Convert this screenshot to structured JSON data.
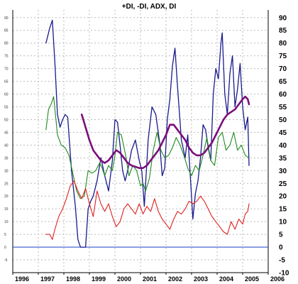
{
  "chart_data": {
    "type": "line",
    "title": "+DI, -DI, ADX, DI",
    "xlabel": "",
    "ylabel": "",
    "xlim": [
      1996.0,
      2006.0
    ],
    "ylim": [
      -10,
      93
    ],
    "grid": true,
    "x_ticks": [
      "1996",
      "1997",
      "1998",
      "1999",
      "2000",
      "2001",
      "2002",
      "2003",
      "2004",
      "2005",
      "2006"
    ],
    "y_ticks_right": [
      "-10",
      "-5",
      "0",
      "5",
      "10",
      "15",
      "20",
      "25",
      "30",
      "35",
      "40",
      "45",
      "50",
      "55",
      "60",
      "65",
      "70",
      "75",
      "80",
      "85",
      "90"
    ],
    "y_ticks_left": [
      "-5",
      "0",
      "5",
      "10",
      "15",
      "20",
      "25",
      "30",
      "35",
      "40",
      "45",
      "50",
      "55",
      "60",
      "65",
      "70",
      "75",
      "80",
      "85",
      "90"
    ],
    "colors": {
      "navy": "#1a1a8c",
      "green": "#1e8a1e",
      "red": "#e02020",
      "purple": "#7a0f7a",
      "zero": "#3355cc"
    },
    "series": [
      {
        "color": "navy",
        "width": 1.3,
        "x": [
          1997.3,
          1997.45,
          1997.55,
          1997.65,
          1997.75,
          1997.85,
          1997.95,
          1998.05,
          1998.15,
          1998.3,
          1998.45,
          1998.55,
          1998.65,
          1998.75,
          1998.85,
          1998.95,
          1999.05,
          1999.15,
          1999.3,
          1999.45,
          1999.6,
          1999.75,
          1999.9,
          2000.0,
          2000.1,
          2000.2,
          2000.3,
          2000.4,
          2000.5,
          2000.65,
          2000.8,
          2000.95,
          2001.05,
          2001.15,
          2001.3,
          2001.45,
          2001.6,
          2001.75,
          2001.85,
          2001.95,
          2002.05,
          2002.15,
          2002.25,
          2002.35,
          2002.45,
          2002.6,
          2002.75,
          2002.85,
          2002.95,
          2003.05,
          2003.15,
          2003.25,
          2003.35,
          2003.45,
          2003.55,
          2003.65,
          2003.75,
          2003.85,
          2003.95,
          2004.05,
          2004.15,
          2004.2,
          2004.3,
          2004.4,
          2004.5,
          2004.6,
          2004.7,
          2004.8,
          2004.9,
          2005.0,
          2005.1,
          2005.2,
          2005.25
        ],
        "y": [
          80,
          86,
          89,
          72,
          52,
          47,
          50,
          52,
          51,
          30,
          16,
          3,
          0,
          0,
          0,
          15,
          18,
          20,
          26,
          35,
          28,
          22,
          34,
          50,
          49,
          40,
          30,
          26,
          30,
          38,
          42,
          34,
          30,
          16,
          42,
          55,
          52,
          41,
          28,
          31,
          50,
          58,
          71,
          78,
          63,
          42,
          35,
          44,
          28,
          11,
          21,
          26,
          35,
          48,
          46,
          39,
          34,
          60,
          70,
          66,
          80,
          84,
          60,
          52,
          68,
          75,
          55,
          62,
          72,
          55,
          46,
          51,
          32
        ]
      },
      {
        "color": "green",
        "width": 1.1,
        "x": [
          1997.3,
          1997.4,
          1997.5,
          1997.6,
          1997.75,
          1997.9,
          1998.05,
          1998.2,
          1998.35,
          1998.5,
          1998.65,
          1998.8,
          1998.95,
          1999.1,
          1999.25,
          1999.4,
          1999.5,
          1999.6,
          1999.75,
          1999.9,
          2000.0,
          2000.1,
          2000.25,
          2000.4,
          2000.55,
          2000.7,
          2000.85,
          2001.0,
          2001.1,
          2001.2,
          2001.35,
          2001.5,
          2001.65,
          2001.8,
          2001.95,
          2002.1,
          2002.25,
          2002.4,
          2002.55,
          2002.7,
          2002.85,
          2003.0,
          2003.15,
          2003.3,
          2003.45,
          2003.6,
          2003.75,
          2003.9,
          2004.05,
          2004.2,
          2004.35,
          2004.5,
          2004.65,
          2004.8,
          2004.95,
          2005.1,
          2005.25
        ],
        "y": [
          46,
          54,
          56,
          59,
          44,
          40,
          39,
          36,
          29,
          22,
          19,
          20,
          30,
          29,
          30,
          33,
          31,
          28,
          32,
          30,
          36,
          45,
          44,
          37,
          28,
          32,
          30,
          24,
          25,
          22,
          27,
          38,
          45,
          38,
          35,
          36,
          39,
          43,
          40,
          36,
          31,
          28,
          32,
          30,
          36,
          43,
          34,
          32,
          43,
          45,
          38,
          40,
          45,
          38,
          40,
          36,
          35
        ]
      },
      {
        "color": "red",
        "width": 1.1,
        "x": [
          1997.3,
          1997.45,
          1997.55,
          1997.65,
          1997.8,
          1997.95,
          1998.1,
          1998.25,
          1998.4,
          1998.55,
          1998.7,
          1998.85,
          1999.0,
          1999.15,
          1999.3,
          1999.45,
          1999.6,
          1999.75,
          1999.9,
          2000.05,
          2000.2,
          2000.35,
          2000.5,
          2000.65,
          2000.8,
          2000.95,
          2001.1,
          2001.25,
          2001.4,
          2001.55,
          2001.7,
          2001.85,
          2002.0,
          2002.15,
          2002.3,
          2002.45,
          2002.6,
          2002.75,
          2002.9,
          2003.05,
          2003.2,
          2003.35,
          2003.5,
          2003.65,
          2003.8,
          2003.95,
          2004.1,
          2004.25,
          2004.4,
          2004.55,
          2004.7,
          2004.85,
          2005.0,
          2005.1,
          2005.2,
          2005.25
        ],
        "y": [
          5,
          5,
          3,
          7,
          12,
          15,
          19,
          24,
          26,
          22,
          19,
          23,
          17,
          12,
          22,
          17,
          14,
          17,
          12,
          8,
          10,
          15,
          17,
          15,
          13,
          17,
          13,
          16,
          14,
          19,
          14,
          11,
          9,
          7,
          11,
          14,
          13,
          15,
          18,
          17,
          18,
          20,
          18,
          15,
          12,
          10,
          8,
          6,
          5,
          10,
          7,
          11,
          9,
          13,
          14,
          17
        ]
      },
      {
        "color": "purple",
        "width": 2.6,
        "x": [
          1998.7,
          1998.85,
          1999.0,
          1999.15,
          1999.3,
          1999.45,
          1999.6,
          1999.75,
          1999.9,
          2000.05,
          2000.2,
          2000.35,
          2000.5,
          2000.65,
          2000.8,
          2000.95,
          2001.1,
          2001.25,
          2001.4,
          2001.55,
          2001.7,
          2001.85,
          2002.0,
          2002.15,
          2002.3,
          2002.45,
          2002.6,
          2002.75,
          2002.9,
          2003.05,
          2003.2,
          2003.35,
          2003.5,
          2003.65,
          2003.8,
          2003.95,
          2004.1,
          2004.25,
          2004.4,
          2004.55,
          2004.7,
          2004.85,
          2005.0,
          2005.1,
          2005.2,
          2005.25
        ],
        "y": [
          52,
          47,
          42,
          38,
          36,
          34,
          33,
          34,
          36,
          38,
          37,
          35,
          33,
          32,
          31.5,
          31,
          31,
          32,
          34,
          36,
          38,
          41,
          44,
          48,
          48,
          46,
          44,
          42,
          39,
          37,
          36,
          36,
          37,
          39,
          41,
          44,
          47,
          50,
          52,
          53,
          54,
          56,
          58,
          59,
          58,
          56
        ]
      }
    ]
  }
}
